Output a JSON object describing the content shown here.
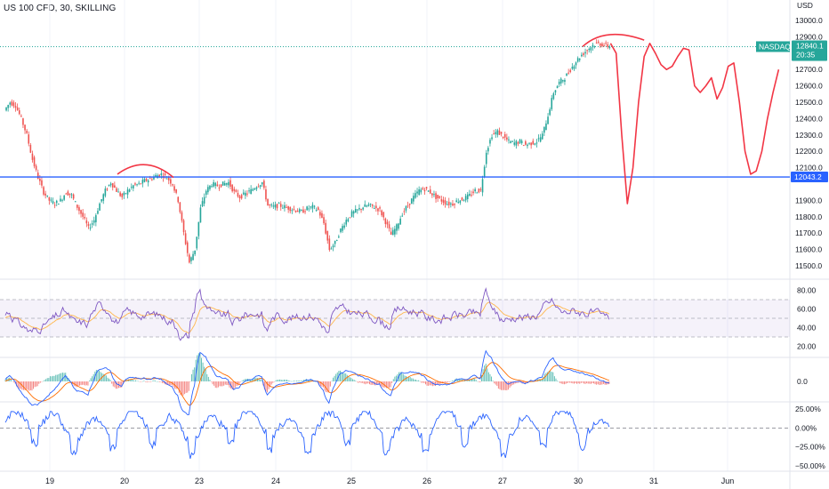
{
  "title": "US 100 CFD, 30, SKILLING",
  "currency": "USD",
  "price_axis": {
    "ticks": [
      "13000.0",
      "12900.0",
      "12800.0",
      "12700.0",
      "12600.0",
      "12500.0",
      "12400.0",
      "12300.0",
      "12200.0",
      "12100.0",
      "11900.0",
      "11800.0",
      "11700.0",
      "11600.0",
      "11500.0"
    ],
    "range": [
      11440,
      13060
    ]
  },
  "last_price": {
    "symbol": "NASDAQ",
    "value": "12840.1",
    "countdown": "20:35",
    "color": "#26a69a"
  },
  "support_level": {
    "value": "12043.2",
    "color": "#2962ff"
  },
  "rsi": {
    "ticks": [
      "80.00",
      "60.00",
      "40.00",
      "20.00"
    ],
    "band_upper": 70,
    "band_mid": 50,
    "band_lower": 30,
    "range": [
      10,
      90
    ]
  },
  "macd": {
    "ticks": [
      "0.0"
    ]
  },
  "osc": {
    "ticks": [
      "25.00%",
      "0.00%",
      "−25.00%",
      "−50.00%"
    ],
    "range": [
      -55,
      30
    ]
  },
  "time_axis": [
    "19",
    "20",
    "23",
    "24",
    "25",
    "26",
    "27",
    "30",
    "31",
    "Jun"
  ],
  "colors": {
    "up": "#26a69a",
    "down": "#ef5350",
    "drawing": "#f23645",
    "rsi": "#7e57c2",
    "rsi_ma": "#ffb74d",
    "macd": "#2962ff",
    "signal": "#ff6d00",
    "osc": "#2962ff"
  },
  "chart_data": {
    "type": "candlestick",
    "interval": "30",
    "close_path": [
      [
        0,
        12450
      ],
      [
        1,
        12500
      ],
      [
        2,
        12480
      ],
      [
        3,
        12400
      ],
      [
        4,
        12300
      ],
      [
        5,
        12150
      ],
      [
        6,
        12040
      ],
      [
        7,
        11950
      ],
      [
        8,
        11900
      ],
      [
        9,
        11880
      ],
      [
        10,
        11900
      ],
      [
        11,
        11950
      ],
      [
        12,
        11930
      ],
      [
        13,
        11860
      ],
      [
        14,
        11800
      ],
      [
        15,
        11730
      ],
      [
        16,
        11780
      ],
      [
        17,
        11880
      ],
      [
        18,
        11960
      ],
      [
        19,
        12010
      ],
      [
        20,
        11960
      ],
      [
        21,
        11920
      ],
      [
        22,
        11960
      ],
      [
        23,
        11990
      ],
      [
        24,
        12000
      ],
      [
        25,
        12020
      ],
      [
        26,
        12030
      ],
      [
        27,
        12050
      ],
      [
        28,
        12060
      ],
      [
        29,
        12040
      ],
      [
        30,
        12000
      ],
      [
        31,
        11900
      ],
      [
        32,
        11700
      ],
      [
        33,
        11520
      ],
      [
        34,
        11600
      ],
      [
        35,
        11850
      ],
      [
        36,
        11960
      ],
      [
        37,
        12000
      ],
      [
        38,
        11990
      ],
      [
        39,
        12000
      ],
      [
        40,
        12010
      ],
      [
        41,
        11950
      ],
      [
        42,
        11920
      ],
      [
        43,
        11940
      ],
      [
        44,
        11960
      ],
      [
        45,
        11990
      ],
      [
        46,
        12010
      ],
      [
        47,
        11870
      ],
      [
        48,
        11860
      ],
      [
        49,
        11870
      ],
      [
        50,
        11860
      ],
      [
        51,
        11850
      ],
      [
        52,
        11840
      ],
      [
        53,
        11830
      ],
      [
        54,
        11850
      ],
      [
        55,
        11860
      ],
      [
        56,
        11840
      ],
      [
        57,
        11760
      ],
      [
        58,
        11600
      ],
      [
        59,
        11640
      ],
      [
        60,
        11720
      ],
      [
        61,
        11780
      ],
      [
        62,
        11820
      ],
      [
        63,
        11840
      ],
      [
        64,
        11860
      ],
      [
        65,
        11870
      ],
      [
        66,
        11860
      ],
      [
        67,
        11840
      ],
      [
        68,
        11770
      ],
      [
        69,
        11690
      ],
      [
        70,
        11740
      ],
      [
        71,
        11820
      ],
      [
        72,
        11870
      ],
      [
        73,
        11920
      ],
      [
        74,
        11960
      ],
      [
        75,
        11970
      ],
      [
        76,
        11950
      ],
      [
        77,
        11920
      ],
      [
        78,
        11900
      ],
      [
        79,
        11880
      ],
      [
        80,
        11880
      ],
      [
        81,
        11900
      ],
      [
        82,
        11910
      ],
      [
        83,
        11930
      ],
      [
        84,
        11960
      ],
      [
        85,
        11960
      ],
      [
        86,
        12200
      ],
      [
        87,
        12300
      ],
      [
        88,
        12320
      ],
      [
        89,
        12290
      ],
      [
        90,
        12260
      ],
      [
        91,
        12250
      ],
      [
        92,
        12260
      ],
      [
        93,
        12240
      ],
      [
        94,
        12250
      ],
      [
        95,
        12260
      ],
      [
        96,
        12300
      ],
      [
        97,
        12420
      ],
      [
        98,
        12560
      ],
      [
        99,
        12620
      ],
      [
        100,
        12650
      ],
      [
        101,
        12700
      ],
      [
        102,
        12750
      ],
      [
        103,
        12790
      ],
      [
        104,
        12820
      ],
      [
        105,
        12850
      ],
      [
        106,
        12860
      ],
      [
        107,
        12850
      ],
      [
        108,
        12840
      ]
    ],
    "horizontal_line": 12043.2,
    "last_close": 12840.1,
    "projection_drawing": [
      [
        108,
        12860
      ],
      [
        109,
        12800
      ],
      [
        110,
        12300
      ],
      [
        111,
        11880
      ],
      [
        112,
        12100
      ],
      [
        113,
        12500
      ],
      [
        114,
        12780
      ],
      [
        115,
        12860
      ],
      [
        116,
        12800
      ],
      [
        117,
        12730
      ],
      [
        118,
        12700
      ],
      [
        119,
        12720
      ],
      [
        120,
        12780
      ],
      [
        121,
        12830
      ],
      [
        122,
        12820
      ],
      [
        123,
        12600
      ],
      [
        124,
        12560
      ],
      [
        125,
        12600
      ],
      [
        126,
        12650
      ],
      [
        127,
        12520
      ],
      [
        128,
        12590
      ],
      [
        129,
        12720
      ],
      [
        130,
        12740
      ],
      [
        131,
        12500
      ],
      [
        132,
        12200
      ],
      [
        133,
        12060
      ],
      [
        134,
        12080
      ],
      [
        135,
        12200
      ],
      [
        136,
        12400
      ],
      [
        137,
        12560
      ],
      [
        138,
        12700
      ]
    ],
    "arcs": [
      {
        "from": [
          20,
          12060
        ],
        "peak": [
          25,
          12110
        ],
        "to": [
          30,
          12040
        ]
      },
      {
        "from": [
          103,
          12840
        ],
        "peak": [
          107,
          12890
        ],
        "to": [
          114,
          12880
        ]
      }
    ],
    "x_labels": [
      "19",
      "20",
      "23",
      "24",
      "25",
      "26",
      "27",
      "30",
      "31",
      "Jun"
    ]
  }
}
